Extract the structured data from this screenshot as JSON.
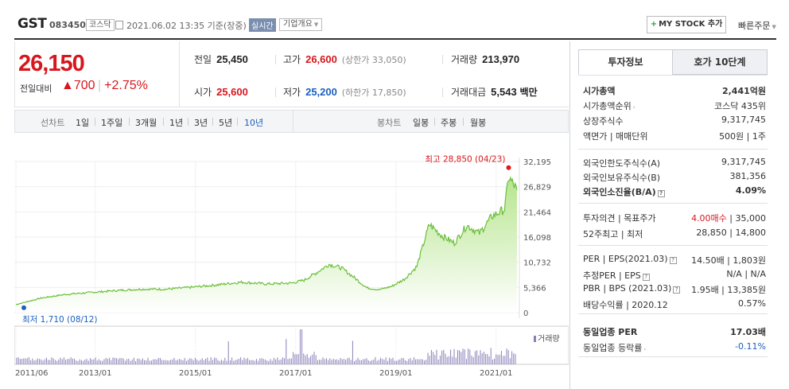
{
  "header": {
    "name": "GST",
    "code": "083450",
    "market": "코스닥",
    "datetime": "2021.06.02 13:35 기준(장중)",
    "live_badge": "실시간",
    "corp_info": "기업개요",
    "mystock_label": "MY STOCK 추가",
    "quick_order": "빠른주문"
  },
  "price": {
    "current": "26,150",
    "change_label": "전일대비",
    "change_value": "▲700",
    "change_pct": "+2.75%"
  },
  "stats": {
    "prev_label": "전일",
    "prev": "25,450",
    "high_label": "고가",
    "high": "26,600",
    "upper_limit": "(상한가 33,050)",
    "volume_label": "거래량",
    "volume": "213,970",
    "open_label": "시가",
    "open": "25,600",
    "low_label": "저가",
    "low": "25,200",
    "lower_limit": "(하한가 17,850)",
    "amount_label": "거래대금",
    "amount": "5,543",
    "amount_unit": "백만"
  },
  "periods": {
    "line_chart_label": "선차트",
    "line_options": [
      "1일",
      "1주일",
      "3개월",
      "1년",
      "3년",
      "5년",
      "10년"
    ],
    "selected": "10년",
    "candle_label": "봉차트",
    "candle_options": [
      "일봉",
      "주봉",
      "월봉"
    ]
  },
  "chart_data": {
    "type": "area",
    "x": [
      "2011/06",
      "2011/12",
      "2012/06",
      "2012/12",
      "2013/06",
      "2013/12",
      "2014/06",
      "2014/12",
      "2015/06",
      "2015/12",
      "2016/06",
      "2016/12",
      "2017/03",
      "2017/06",
      "2017/09",
      "2017/12",
      "2018/03",
      "2018/06",
      "2018/09",
      "2018/12",
      "2019/03",
      "2019/06",
      "2019/09",
      "2019/12",
      "2020/03",
      "2020/06",
      "2020/09",
      "2020/12",
      "2021/03",
      "2021/04",
      "2021/06"
    ],
    "values": [
      1710,
      3100,
      3900,
      4300,
      4700,
      5000,
      5000,
      5400,
      5900,
      6500,
      6100,
      6300,
      6900,
      8500,
      10300,
      9500,
      7500,
      5300,
      4900,
      5600,
      7100,
      9800,
      18800,
      16400,
      14800,
      18600,
      16900,
      20500,
      22000,
      28850,
      26150
    ],
    "y_ticks": [
      "32,195",
      "26,829",
      "21,464",
      "16,098",
      "10,732",
      "5,366",
      "0"
    ],
    "ylim": [
      0,
      32195
    ],
    "x_ticks": [
      "2011/06",
      "2013/01",
      "2015/01",
      "2017/01",
      "2019/01",
      "2021/01"
    ],
    "max_label": "최고 28,850 (04/23)",
    "min_label": "최저 1,710 (08/12)",
    "volume_legend": "거래량",
    "line_color": "#6bbf3a",
    "fill_color": "#c8eca8"
  },
  "right_panel": {
    "tabs": [
      "투자정보",
      "호가 10단계"
    ],
    "rows1": [
      {
        "k": "시가총액",
        "v": "2,441억원",
        "kb": true,
        "vb": true
      },
      {
        "k": "시가총액순위",
        "v": "코스닥 435위",
        "tri": true
      },
      {
        "k": "상장주식수",
        "v": "9,317,745"
      },
      {
        "k": "액면가 | 매매단위",
        "v": "500원 | 1주"
      }
    ],
    "rows2": [
      {
        "k": "외국인한도주식수(A)",
        "v": "9,317,745"
      },
      {
        "k": "외국인보유주식수(B)",
        "v": "381,356"
      },
      {
        "k": "외국인소진율(B/A)",
        "v": "4.09%",
        "kb": true,
        "vb": true,
        "q": true
      }
    ],
    "opinion_label": "투자의견 | 목표주가",
    "opinion_value": "4.00매수",
    "target_price": "| 35,000",
    "week52_label": "52주최고 | 최저",
    "week52_value": "28,850 | 14,800",
    "per_rows": [
      {
        "k": "PER | EPS(2021.03)",
        "v": "14.50배 | 1,803원"
      },
      {
        "k": "추정PER | EPS",
        "v": "N/A | N/A"
      },
      {
        "k": "PBR | BPS (2021.03)",
        "v": "1.95배 | 13,385원"
      },
      {
        "k": "배당수익률 | 2020.12",
        "v": "0.57%"
      }
    ],
    "industry_per_label": "동일업종 PER",
    "industry_per_value": "17.03배",
    "industry_rate_label": "동일업종 등락률",
    "industry_rate_value": "-0.11%"
  }
}
